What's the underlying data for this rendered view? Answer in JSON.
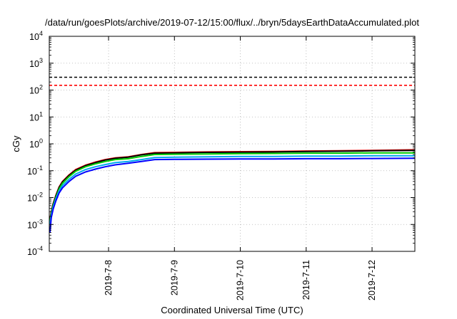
{
  "chart_data": {
    "type": "line",
    "title": "/data/run/goesPlots/archive/2019-07-12/15:00/flux/../bryn/5daysEarthDataAccumulated.plot",
    "xlabel": "Coordinated Universal Time (UTC)",
    "ylabel": "cGy",
    "x_ticks": [
      "2019-7-8",
      "2019-7-9",
      "2019-7-10",
      "2019-7-11",
      "2019-7-12"
    ],
    "x_range_days": [
      7.1,
      12.65
    ],
    "y_scale": "log",
    "y_range": [
      0.0001,
      10000
    ],
    "y_ticks": [
      {
        "base": "10",
        "exp": "-4"
      },
      {
        "base": "10",
        "exp": "-3"
      },
      {
        "base": "10",
        "exp": "-2"
      },
      {
        "base": "10",
        "exp": "-1"
      },
      {
        "base": "10",
        "exp": "0"
      },
      {
        "base": "10",
        "exp": "1"
      },
      {
        "base": "10",
        "exp": "2"
      },
      {
        "base": "10",
        "exp": "3"
      },
      {
        "base": "10",
        "exp": "4"
      }
    ],
    "grid": true,
    "thresholds": [
      {
        "value": 300,
        "color": "#000000",
        "style": "dashed"
      },
      {
        "value": 150,
        "color": "#ff0000",
        "style": "dashed"
      }
    ],
    "series": [
      {
        "color": "#ff0000",
        "x": [
          7.11,
          7.13,
          7.16,
          7.2,
          7.25,
          7.3,
          7.4,
          7.5,
          7.65,
          7.8,
          7.95,
          8.1,
          8.3,
          8.5,
          8.7,
          9.0,
          9.5,
          10.0,
          10.5,
          11.0,
          11.5,
          12.0,
          12.65
        ],
        "y": [
          0.0015,
          0.003,
          0.006,
          0.012,
          0.025,
          0.04,
          0.07,
          0.11,
          0.16,
          0.21,
          0.26,
          0.3,
          0.33,
          0.4,
          0.47,
          0.48,
          0.5,
          0.51,
          0.52,
          0.54,
          0.55,
          0.57,
          0.6
        ]
      },
      {
        "color": "#000000",
        "x": [
          7.11,
          7.13,
          7.16,
          7.2,
          7.25,
          7.3,
          7.4,
          7.5,
          7.65,
          7.8,
          7.95,
          8.1,
          8.3,
          8.5,
          8.7,
          9.0,
          9.5,
          10.0,
          10.5,
          11.0,
          11.5,
          12.0,
          12.65
        ],
        "y": [
          0.0014,
          0.0029,
          0.0058,
          0.0115,
          0.024,
          0.038,
          0.067,
          0.105,
          0.155,
          0.2,
          0.25,
          0.29,
          0.32,
          0.39,
          0.45,
          0.46,
          0.48,
          0.49,
          0.5,
          0.52,
          0.53,
          0.55,
          0.57
        ]
      },
      {
        "color": "#00cc00",
        "x": [
          7.11,
          7.13,
          7.16,
          7.2,
          7.25,
          7.3,
          7.4,
          7.5,
          7.65,
          7.8,
          7.95,
          8.1,
          8.3,
          8.5,
          8.7,
          9.0,
          9.5,
          10.0,
          10.5,
          11.0,
          11.5,
          12.0,
          12.65
        ],
        "y": [
          0.0012,
          0.0026,
          0.005,
          0.01,
          0.021,
          0.034,
          0.06,
          0.095,
          0.14,
          0.18,
          0.22,
          0.26,
          0.28,
          0.34,
          0.4,
          0.41,
          0.42,
          0.43,
          0.44,
          0.45,
          0.45,
          0.46,
          0.46
        ]
      },
      {
        "color": "#00aaee",
        "x": [
          7.11,
          7.13,
          7.16,
          7.2,
          7.25,
          7.3,
          7.4,
          7.5,
          7.65,
          7.8,
          7.95,
          8.1,
          8.3,
          8.5,
          8.7,
          9.0,
          9.5,
          10.0,
          10.5,
          11.0,
          11.5,
          12.0,
          12.65
        ],
        "y": [
          0.001,
          0.0022,
          0.0045,
          0.009,
          0.018,
          0.028,
          0.048,
          0.075,
          0.11,
          0.14,
          0.17,
          0.2,
          0.22,
          0.26,
          0.31,
          0.32,
          0.33,
          0.34,
          0.34,
          0.35,
          0.35,
          0.36,
          0.36
        ]
      },
      {
        "color": "#0000ff",
        "x": [
          7.11,
          7.13,
          7.16,
          7.2,
          7.25,
          7.3,
          7.4,
          7.5,
          7.65,
          7.8,
          7.95,
          8.1,
          8.3,
          8.5,
          8.7,
          9.0,
          9.5,
          10.0,
          10.5,
          11.0,
          11.5,
          12.0,
          12.65
        ],
        "y": [
          0.0005,
          0.0018,
          0.0038,
          0.0075,
          0.015,
          0.023,
          0.04,
          0.062,
          0.09,
          0.115,
          0.14,
          0.165,
          0.19,
          0.22,
          0.26,
          0.265,
          0.27,
          0.275,
          0.275,
          0.28,
          0.28,
          0.285,
          0.29
        ]
      }
    ]
  }
}
